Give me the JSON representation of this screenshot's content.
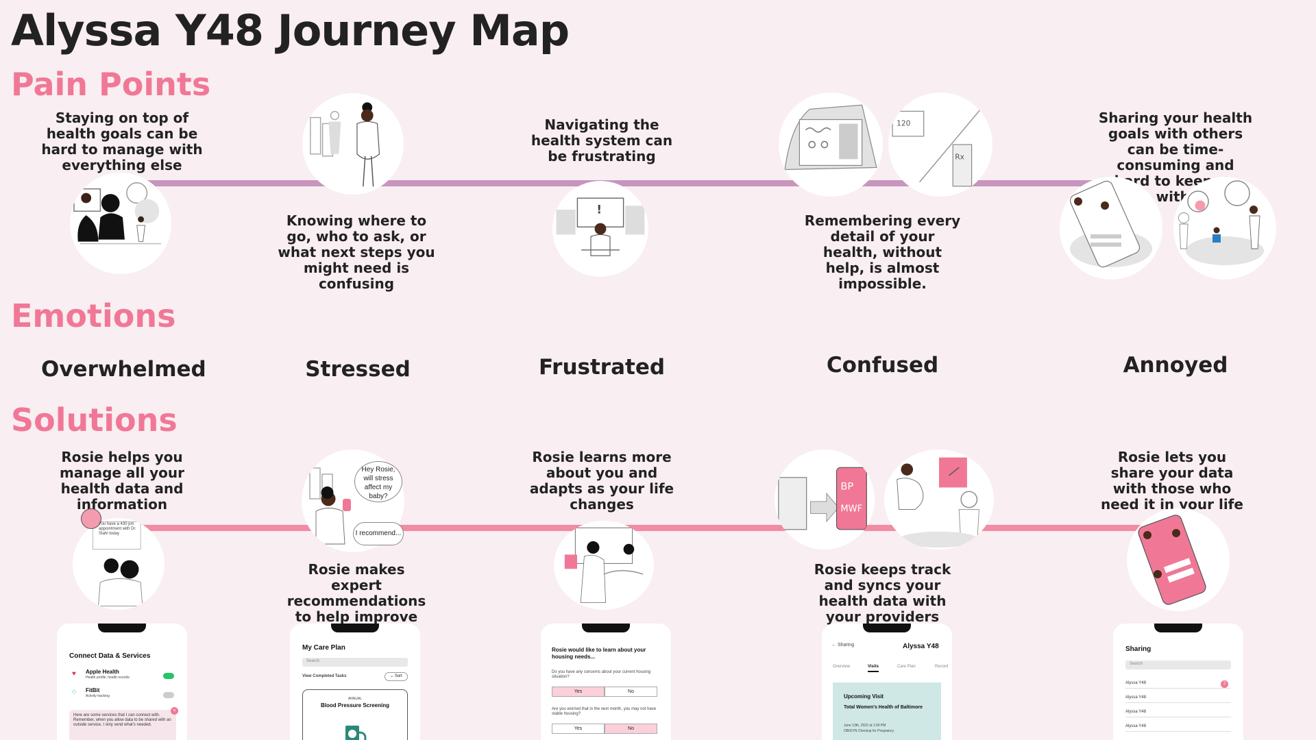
{
  "title": "Alyssa Y48 Journey Map",
  "sections": {
    "pain_points": "Pain Points",
    "emotions": "Emotions",
    "solutions": "Solutions"
  },
  "pain_points": [
    "Staying on top of health goals can be hard to manage with everything else",
    "Knowing where to go, who to ask, or what next steps you might need is confusing",
    "Navigating the health system can be frustrating",
    "Remembering every detail of your health, without help, is almost impossible.",
    "Sharing your health goals with others can be time-consuming and hard to keep up with."
  ],
  "emotions": [
    "Overwhelmed",
    "Stressed",
    "Frustrated",
    "Confused",
    "Annoyed"
  ],
  "solutions": [
    "Rosie helps you manage all your health data and information",
    "Rosie makes expert recommendations to help improve health",
    "Rosie learns more about you and adapts as your life changes",
    "Rosie keeps track and syncs your health data with your providers",
    "Rosie lets you share your data with those who need it in your life"
  ],
  "illustration_text": {
    "bubble_hey": "Hey Rosie, will stress affect my baby?",
    "bubble_recommend": "I recommend...",
    "appointment": "You have a 430 pm appointment with Dr. Stahl today"
  },
  "phones": {
    "connect": {
      "title": "Connect Data & Services",
      "apple": "Apple Health",
      "apple_sub": "Health profile, health records",
      "fitbit": "FitBit",
      "fitbit_sub": "Activity tracking",
      "message": "Here are some services that I can connect with. Remember, when you allow data to be shared with an outside service, I only send what's needed."
    },
    "careplan": {
      "title": "My Care Plan",
      "search": "Search",
      "view": "View Completed Tasks",
      "sort": "Sort",
      "card_kicker": "ANNUAL",
      "card_title": "Blood Pressure Screening"
    },
    "housing": {
      "title": "Rosie would like to learn about your housing needs...",
      "q1": "Do you have any concerns about your current housing situation?",
      "q2": "Are you worried that in the next month, you may not have stable housing?",
      "yes": "Yes",
      "no": "No"
    },
    "visits": {
      "back": "Sharing",
      "name": "Alyssa Y48",
      "tabs": [
        "Overview",
        "Visits",
        "Care Plan",
        "Record"
      ],
      "card_kicker": "Upcoming Visit",
      "card_title": "Total Women's Health of Baltimore",
      "card_date": "June 13th, 2022 at 1:00 PM",
      "card_desc": "OB/GYN Checkup for Pregnancy"
    },
    "sharing": {
      "title": "Sharing",
      "search": "Search",
      "rows": [
        "Alyssa Y48",
        "Alyssa Y48",
        "Alyssa Y48",
        "Alyssa Y48"
      ],
      "badge": "2"
    }
  },
  "colors": {
    "accent_pink": "#f07896",
    "pain_line": "#c795bd",
    "solution_line": "#f08ca3",
    "background": "#f9eef2"
  }
}
